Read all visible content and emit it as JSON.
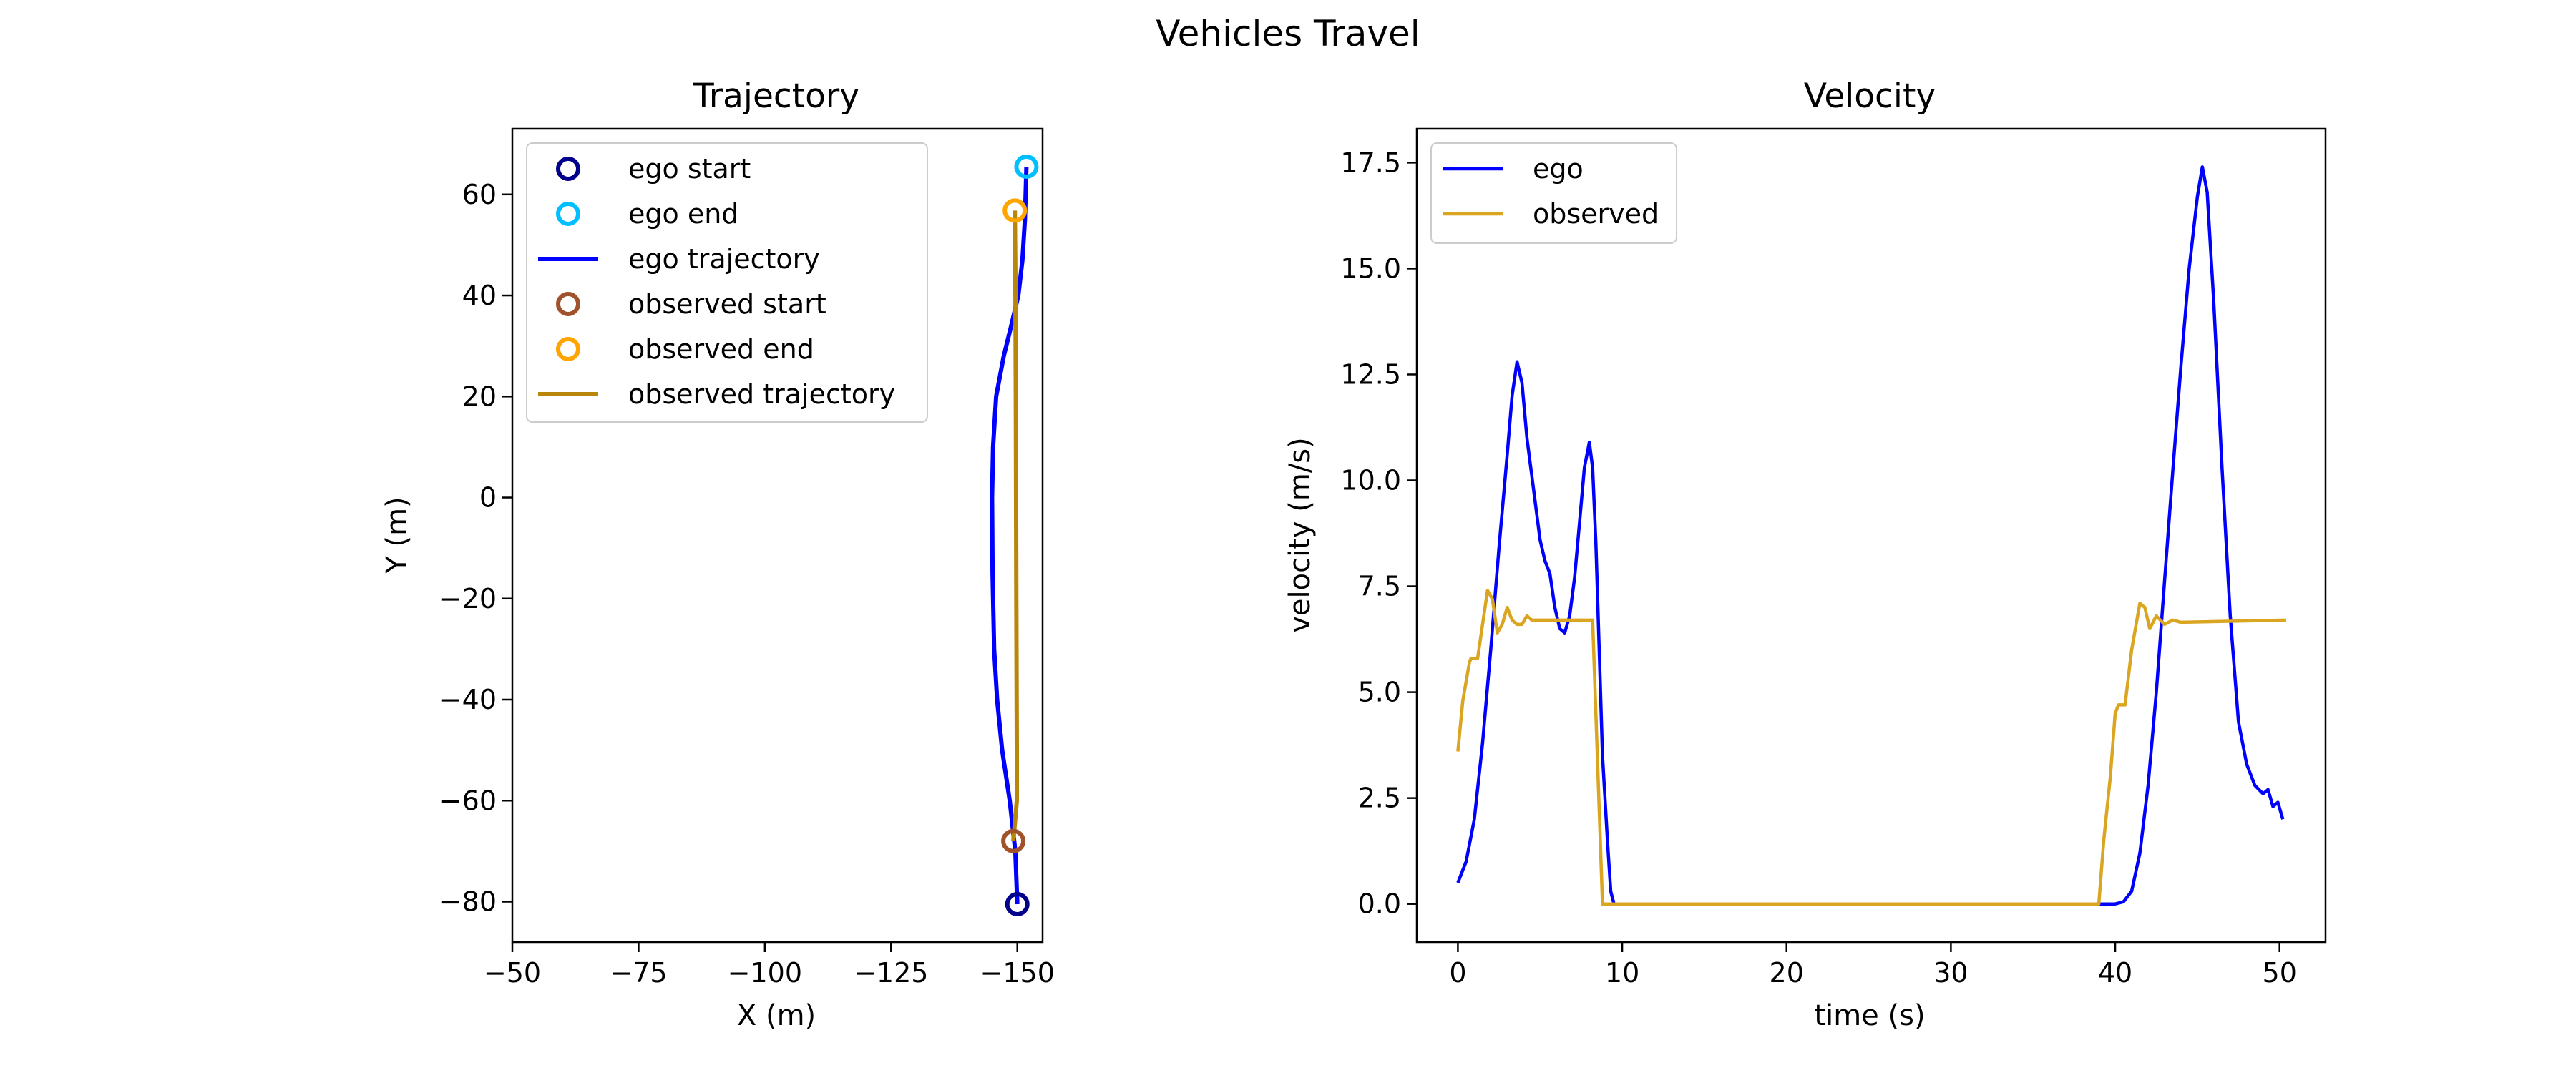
{
  "figure": {
    "suptitle": "Vehicles Travel"
  },
  "colors": {
    "ego_start": "#00008b",
    "ego_end": "#00bfff",
    "ego_trajectory": "#0000ff",
    "observed_start": "#a0522d",
    "observed_end": "#ffa500",
    "observed_trajectory": "#b8860b",
    "ego_velocity": "#0000ff",
    "observed_velocity": "#daa520"
  },
  "chart_data": [
    {
      "type": "line",
      "title": "Trajectory",
      "xlabel": "X (m)",
      "ylabel": "Y (m)",
      "x_inverted": true,
      "xlim": [
        -50,
        -155
      ],
      "ylim": [
        -88,
        73
      ],
      "xticks": [
        -50,
        -75,
        -100,
        -125,
        -150
      ],
      "xtick_labels": [
        "−50",
        "−75",
        "−100",
        "−125",
        "−150"
      ],
      "yticks": [
        -80,
        -60,
        -40,
        -20,
        0,
        20,
        40,
        60
      ],
      "ytick_labels": [
        "−80",
        "−60",
        "−40",
        "−20",
        "0",
        "20",
        "40",
        "60"
      ],
      "grid": false,
      "legend_position": "top-left",
      "series": [
        {
          "name": "ego start",
          "kind": "marker",
          "color_key": "ego_start",
          "points": [
            [
              -150.0,
              -80.5
            ]
          ]
        },
        {
          "name": "ego end",
          "kind": "marker",
          "color_key": "ego_end",
          "points": [
            [
              -151.8,
              65.5
            ]
          ]
        },
        {
          "name": "ego trajectory",
          "kind": "line",
          "color_key": "ego_trajectory",
          "points": [
            [
              -150.0,
              -80.5
            ],
            [
              -149.6,
              -70.0
            ],
            [
              -148.5,
              -60.0
            ],
            [
              -147.0,
              -50.0
            ],
            [
              -146.0,
              -40.0
            ],
            [
              -145.4,
              -30.0
            ],
            [
              -145.1,
              -15.0
            ],
            [
              -145.0,
              0.0
            ],
            [
              -145.2,
              10.0
            ],
            [
              -145.8,
              20.0
            ],
            [
              -147.3,
              28.0
            ],
            [
              -148.8,
              34.0
            ],
            [
              -150.2,
              40.0
            ],
            [
              -151.0,
              47.0
            ],
            [
              -151.5,
              55.0
            ],
            [
              -151.8,
              65.5
            ]
          ]
        },
        {
          "name": "observed start",
          "kind": "marker",
          "color_key": "observed_start",
          "points": [
            [
              -149.2,
              -68.0
            ]
          ]
        },
        {
          "name": "observed end",
          "kind": "marker",
          "color_key": "observed_end",
          "points": [
            [
              -149.5,
              56.8
            ]
          ]
        },
        {
          "name": "observed trajectory",
          "kind": "line",
          "color_key": "observed_trajectory",
          "points": [
            [
              -149.2,
              -68.0
            ],
            [
              -149.9,
              -60.0
            ],
            [
              -149.9,
              -50.0
            ],
            [
              -149.8,
              -20.0
            ],
            [
              -149.7,
              20.0
            ],
            [
              -149.6,
              45.0
            ],
            [
              -149.5,
              56.8
            ]
          ]
        }
      ]
    },
    {
      "type": "line",
      "title": "Velocity",
      "xlabel": "time (s)",
      "ylabel": "velocity (m/s)",
      "xlim": [
        -2.5,
        52.8
      ],
      "ylim": [
        -0.9,
        18.3
      ],
      "xticks": [
        0,
        10,
        20,
        30,
        40,
        50
      ],
      "xtick_labels": [
        "0",
        "10",
        "20",
        "30",
        "40",
        "50"
      ],
      "yticks": [
        0.0,
        2.5,
        5.0,
        7.5,
        10.0,
        12.5,
        15.0,
        17.5
      ],
      "ytick_labels": [
        "0.0",
        "2.5",
        "5.0",
        "7.5",
        "10.0",
        "12.5",
        "15.0",
        "17.5"
      ],
      "grid": false,
      "legend_position": "top-left",
      "series": [
        {
          "name": "ego",
          "color_key": "ego_velocity",
          "points": [
            [
              0,
              0.5
            ],
            [
              0.5,
              1.0
            ],
            [
              1.0,
              2.0
            ],
            [
              1.5,
              3.8
            ],
            [
              2.0,
              6.0
            ],
            [
              2.5,
              8.4
            ],
            [
              3.0,
              10.6
            ],
            [
              3.3,
              12.0
            ],
            [
              3.6,
              12.8
            ],
            [
              3.9,
              12.3
            ],
            [
              4.2,
              11.0
            ],
            [
              4.6,
              9.8
            ],
            [
              5.0,
              8.6
            ],
            [
              5.3,
              8.1
            ],
            [
              5.6,
              7.8
            ],
            [
              5.9,
              7.0
            ],
            [
              6.2,
              6.5
            ],
            [
              6.5,
              6.4
            ],
            [
              6.8,
              6.8
            ],
            [
              7.1,
              7.7
            ],
            [
              7.4,
              9.0
            ],
            [
              7.7,
              10.3
            ],
            [
              8.0,
              10.9
            ],
            [
              8.2,
              10.3
            ],
            [
              8.4,
              8.5
            ],
            [
              8.6,
              6.0
            ],
            [
              8.8,
              3.5
            ],
            [
              9.1,
              1.5
            ],
            [
              9.3,
              0.3
            ],
            [
              9.5,
              0.0
            ],
            [
              40.0,
              0.0
            ],
            [
              40.5,
              0.05
            ],
            [
              41.0,
              0.3
            ],
            [
              41.5,
              1.2
            ],
            [
              42.0,
              2.8
            ],
            [
              42.5,
              5.0
            ],
            [
              43.0,
              7.6
            ],
            [
              43.5,
              10.2
            ],
            [
              44.0,
              12.7
            ],
            [
              44.5,
              15.0
            ],
            [
              45.0,
              16.7
            ],
            [
              45.3,
              17.4
            ],
            [
              45.6,
              16.8
            ],
            [
              46.0,
              14.2
            ],
            [
              46.5,
              10.3
            ],
            [
              47.0,
              6.8
            ],
            [
              47.5,
              4.3
            ],
            [
              48.0,
              3.3
            ],
            [
              48.5,
              2.8
            ],
            [
              49.0,
              2.6
            ],
            [
              49.3,
              2.7
            ],
            [
              49.6,
              2.3
            ],
            [
              49.9,
              2.4
            ],
            [
              50.2,
              2.0
            ]
          ]
        },
        {
          "name": "observed",
          "color_key": "observed_velocity",
          "points": [
            [
              0,
              3.6
            ],
            [
              0.3,
              4.8
            ],
            [
              0.7,
              5.7
            ],
            [
              0.8,
              5.8
            ],
            [
              1.2,
              5.8
            ],
            [
              1.5,
              6.6
            ],
            [
              1.8,
              7.4
            ],
            [
              2.1,
              7.2
            ],
            [
              2.4,
              6.4
            ],
            [
              2.7,
              6.6
            ],
            [
              3.0,
              7.0
            ],
            [
              3.3,
              6.7
            ],
            [
              3.6,
              6.6
            ],
            [
              3.9,
              6.6
            ],
            [
              4.2,
              6.8
            ],
            [
              4.5,
              6.7
            ],
            [
              5.0,
              6.7
            ],
            [
              8.2,
              6.7
            ],
            [
              8.8,
              0.0
            ],
            [
              39.0,
              0.0
            ],
            [
              39.3,
              1.5
            ],
            [
              39.7,
              3.0
            ],
            [
              40.0,
              4.5
            ],
            [
              40.2,
              4.7
            ],
            [
              40.6,
              4.7
            ],
            [
              41.0,
              6.0
            ],
            [
              41.5,
              7.1
            ],
            [
              41.8,
              7.0
            ],
            [
              42.1,
              6.5
            ],
            [
              42.5,
              6.8
            ],
            [
              43.0,
              6.6
            ],
            [
              43.5,
              6.7
            ],
            [
              44.0,
              6.65
            ],
            [
              50.4,
              6.7
            ]
          ]
        }
      ]
    }
  ]
}
